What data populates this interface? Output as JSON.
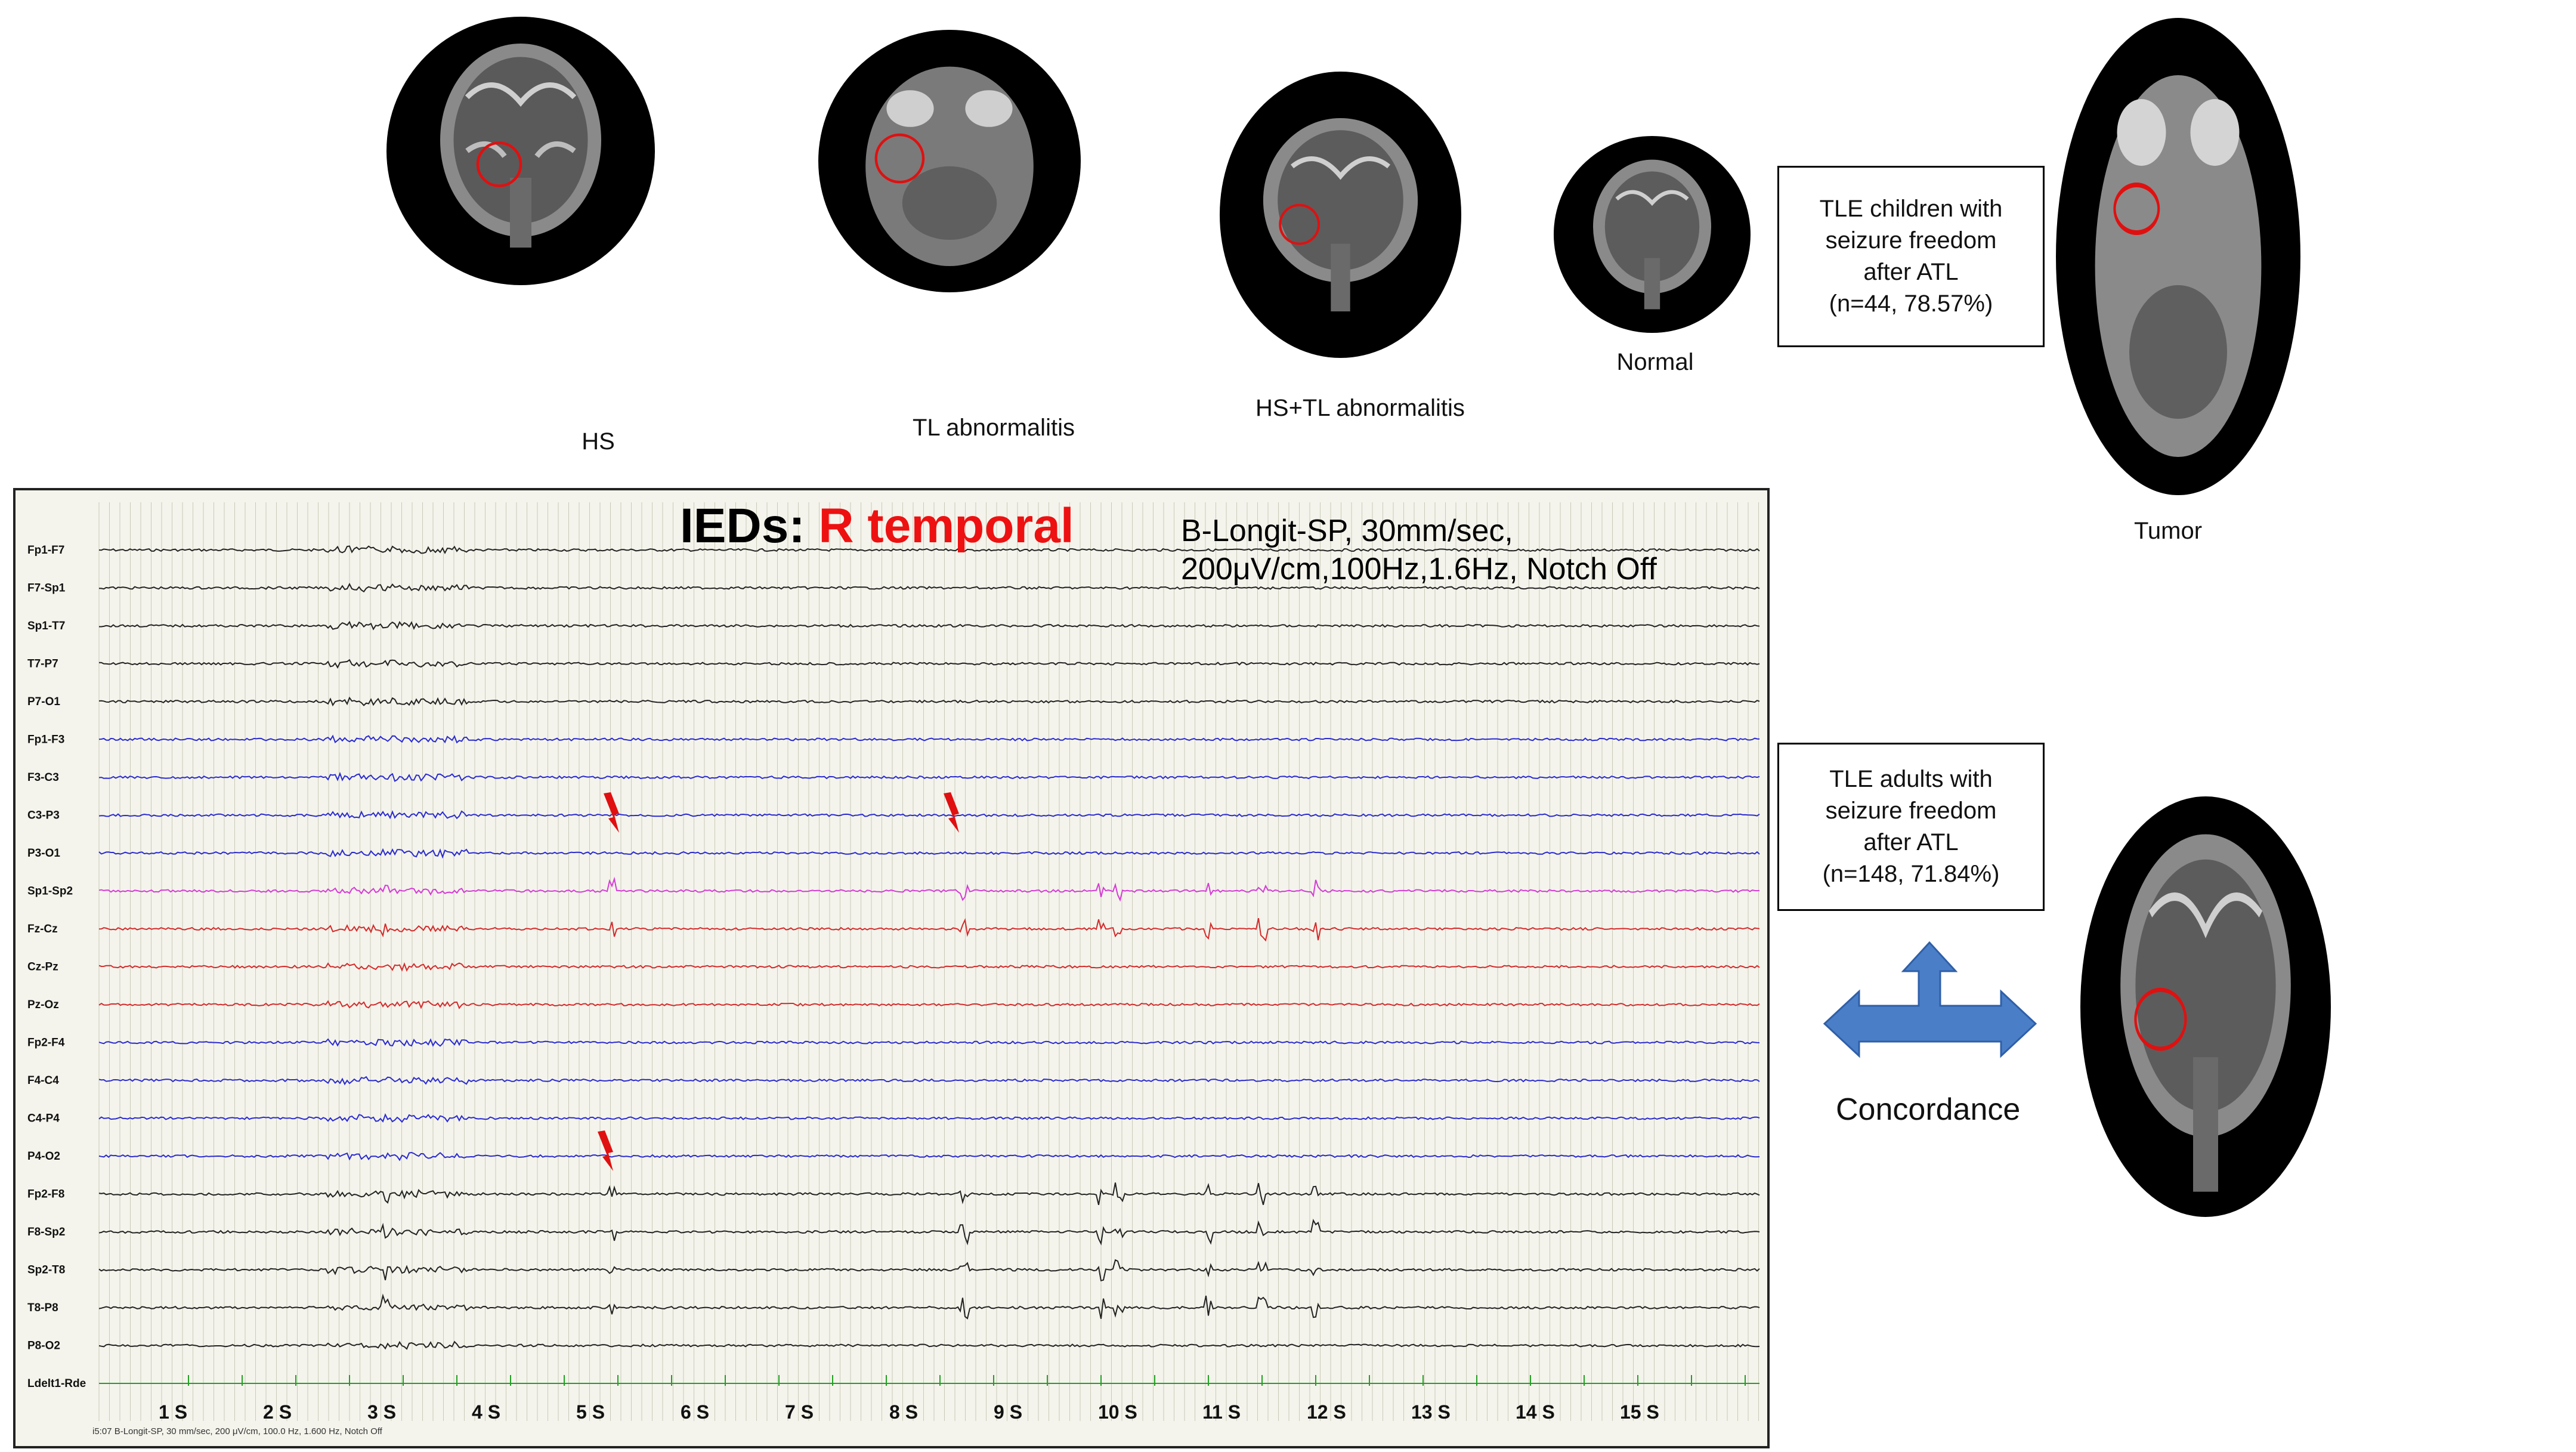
{
  "mri_top": [
    {
      "id": "hs",
      "caption": "HS"
    },
    {
      "id": "tl",
      "caption": "TL abnormalitis"
    },
    {
      "id": "hstl",
      "caption": "HS+TL abnormalitis"
    },
    {
      "id": "normal",
      "caption": "Normal"
    },
    {
      "id": "tumor",
      "caption": "Tumor"
    }
  ],
  "children_box": [
    "TLE children with",
    "seizure freedom",
    "after ATL",
    "(n=44, 78.57%)"
  ],
  "adults_box": [
    "TLE adults with",
    "seizure freedom",
    "after ATL",
    "(n=148, 71.84%)"
  ],
  "concordance_label": "Concordance",
  "eeg": {
    "title_prefix": "IEDs",
    "title_sep": ": ",
    "title_highlight": "R temporal",
    "settings_line1": "B-Longit-SP, 30mm/sec,",
    "settings_line2": "200μV/cm,100Hz,1.6Hz, Notch Off",
    "footer": "i5:07 B-Longit-SP, 30 mm/sec, 200 μV/cm, 100.0 Hz, 1.600 Hz, Notch Off",
    "channels": [
      {
        "label": "Fp1-F7",
        "color": "#222222"
      },
      {
        "label": "F7-Sp1",
        "color": "#222222"
      },
      {
        "label": "Sp1-T7",
        "color": "#222222"
      },
      {
        "label": "T7-P7",
        "color": "#222222"
      },
      {
        "label": "P7-O1",
        "color": "#222222"
      },
      {
        "label": "Fp1-F3",
        "color": "#2a2ad0"
      },
      {
        "label": "F3-C3",
        "color": "#2a2ad0"
      },
      {
        "label": "C3-P3",
        "color": "#2a2ad0"
      },
      {
        "label": "P3-O1",
        "color": "#2a2ad0"
      },
      {
        "label": "Sp1-Sp2",
        "color": "#d63ad6"
      },
      {
        "label": "Fz-Cz",
        "color": "#d42a2a"
      },
      {
        "label": "Cz-Pz",
        "color": "#d42a2a"
      },
      {
        "label": "Pz-Oz",
        "color": "#d42a2a"
      },
      {
        "label": "Fp2-F4",
        "color": "#2a2ad0"
      },
      {
        "label": "F4-C4",
        "color": "#2a2ad0"
      },
      {
        "label": "C4-P4",
        "color": "#2a2ad0"
      },
      {
        "label": "P4-O2",
        "color": "#2a2ad0"
      },
      {
        "label": "Fp2-F8",
        "color": "#222222"
      },
      {
        "label": "F8-Sp2",
        "color": "#222222"
      },
      {
        "label": "Sp2-T8",
        "color": "#222222"
      },
      {
        "label": "T8-P8",
        "color": "#222222"
      },
      {
        "label": "P8-O2",
        "color": "#222222"
      },
      {
        "label": "Ldelt1-Rde",
        "color": "#22a022"
      }
    ],
    "time_labels": [
      "1 S",
      "2 S",
      "3 S",
      "4 S",
      "5 S",
      "6 S",
      "7 S",
      "8 S",
      "9 S",
      "10 S",
      "11 S",
      "12 S",
      "13 S",
      "14 S",
      "15 S"
    ],
    "colors": {
      "grid": "#c9c9b8",
      "arrow": "#e01010",
      "background": "#f4f4ec"
    }
  },
  "colors": {
    "concordance_arrow": "#4a7fc8",
    "circle_marker": "#e01010"
  }
}
